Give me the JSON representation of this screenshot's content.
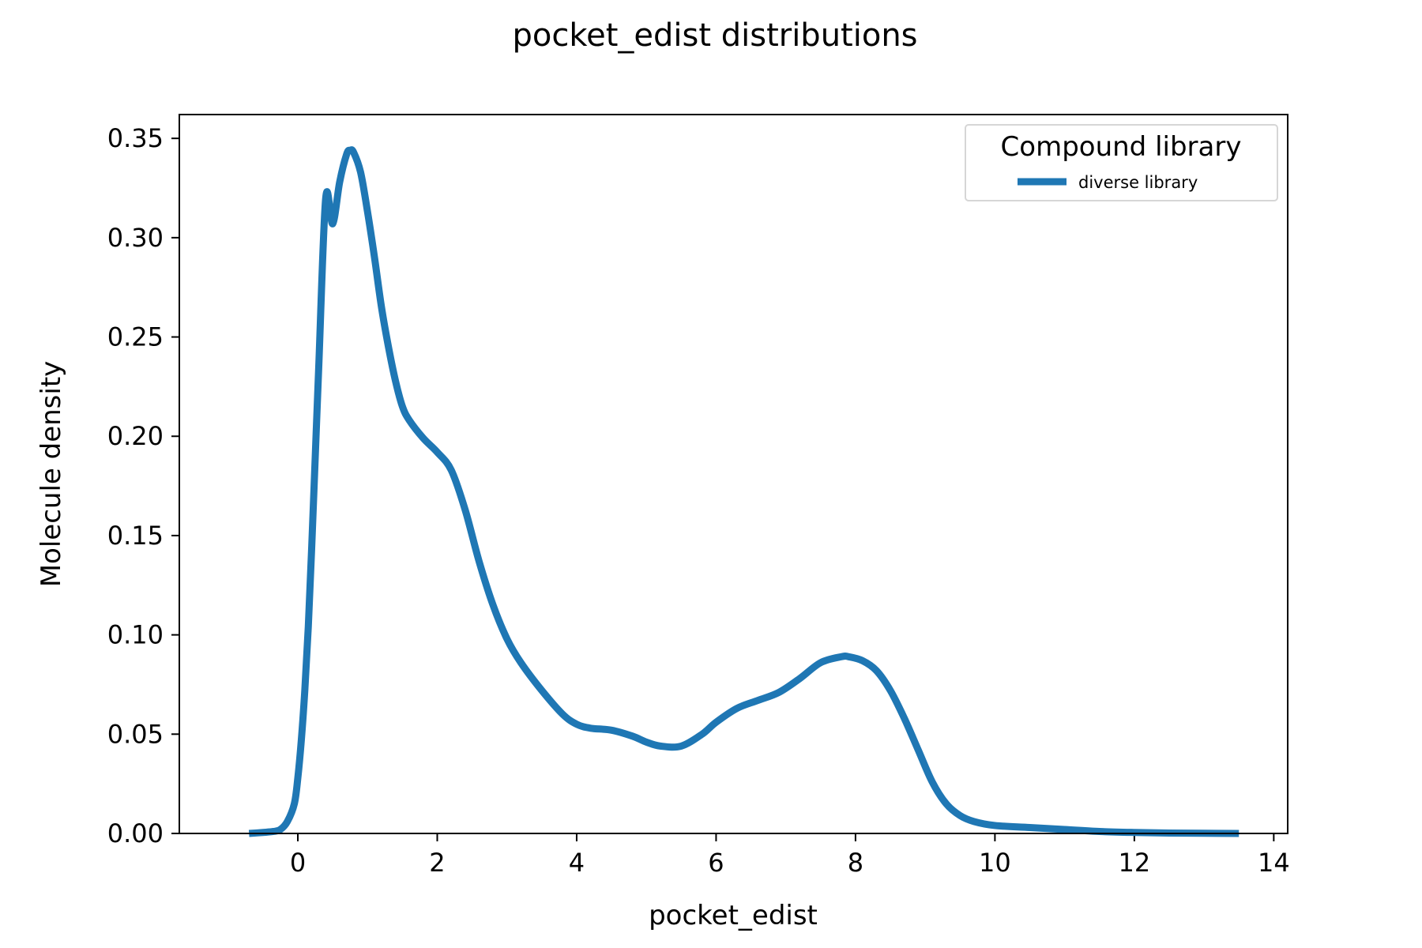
{
  "chart_data": {
    "type": "line",
    "title": "pocket_edist distributions",
    "xlabel": "pocket_edist",
    "ylabel": "Molecule density",
    "xlim": [
      -1.7,
      14.2
    ],
    "ylim": [
      0,
      0.362
    ],
    "xticks": [
      0,
      2,
      4,
      6,
      8,
      10,
      12,
      14
    ],
    "yticks": [
      0.0,
      0.05,
      0.1,
      0.15,
      0.2,
      0.25,
      0.3,
      0.35
    ],
    "ytick_labels": [
      "0.00",
      "0.05",
      "0.10",
      "0.15",
      "0.20",
      "0.25",
      "0.30",
      "0.35"
    ],
    "grid": false,
    "legend": {
      "title": "Compound library",
      "placement": "top-right"
    },
    "series": [
      {
        "name": "diverse library",
        "color": "#1f77b4",
        "x": [
          -0.7,
          -0.5,
          -0.35,
          -0.25,
          -0.15,
          -0.05,
          0.0,
          0.05,
          0.1,
          0.15,
          0.2,
          0.25,
          0.3,
          0.4,
          0.5,
          0.6,
          0.7,
          0.75,
          0.8,
          0.9,
          1.0,
          1.1,
          1.2,
          1.3,
          1.4,
          1.5,
          1.6,
          1.8,
          2.0,
          2.2,
          2.4,
          2.6,
          2.8,
          3.0,
          3.2,
          3.5,
          3.8,
          4.0,
          4.2,
          4.5,
          4.8,
          5.0,
          5.2,
          5.5,
          5.8,
          6.0,
          6.3,
          6.6,
          6.9,
          7.2,
          7.5,
          7.8,
          7.9,
          8.1,
          8.3,
          8.5,
          8.7,
          8.9,
          9.1,
          9.3,
          9.5,
          9.7,
          10.0,
          10.5,
          11.0,
          11.5,
          12.0,
          12.5,
          13.0,
          13.5
        ],
        "y": [
          0.0,
          0.0005,
          0.001,
          0.002,
          0.006,
          0.015,
          0.028,
          0.047,
          0.072,
          0.104,
          0.145,
          0.19,
          0.235,
          0.32,
          0.307,
          0.328,
          0.342,
          0.344,
          0.343,
          0.333,
          0.313,
          0.29,
          0.265,
          0.245,
          0.228,
          0.215,
          0.208,
          0.199,
          0.192,
          0.183,
          0.163,
          0.137,
          0.115,
          0.098,
          0.086,
          0.072,
          0.06,
          0.055,
          0.053,
          0.052,
          0.049,
          0.046,
          0.044,
          0.044,
          0.05,
          0.056,
          0.063,
          0.067,
          0.071,
          0.078,
          0.086,
          0.089,
          0.089,
          0.087,
          0.082,
          0.072,
          0.058,
          0.042,
          0.026,
          0.015,
          0.009,
          0.006,
          0.004,
          0.003,
          0.002,
          0.001,
          0.0005,
          0.0002,
          0.0001,
          0.0
        ]
      }
    ]
  }
}
